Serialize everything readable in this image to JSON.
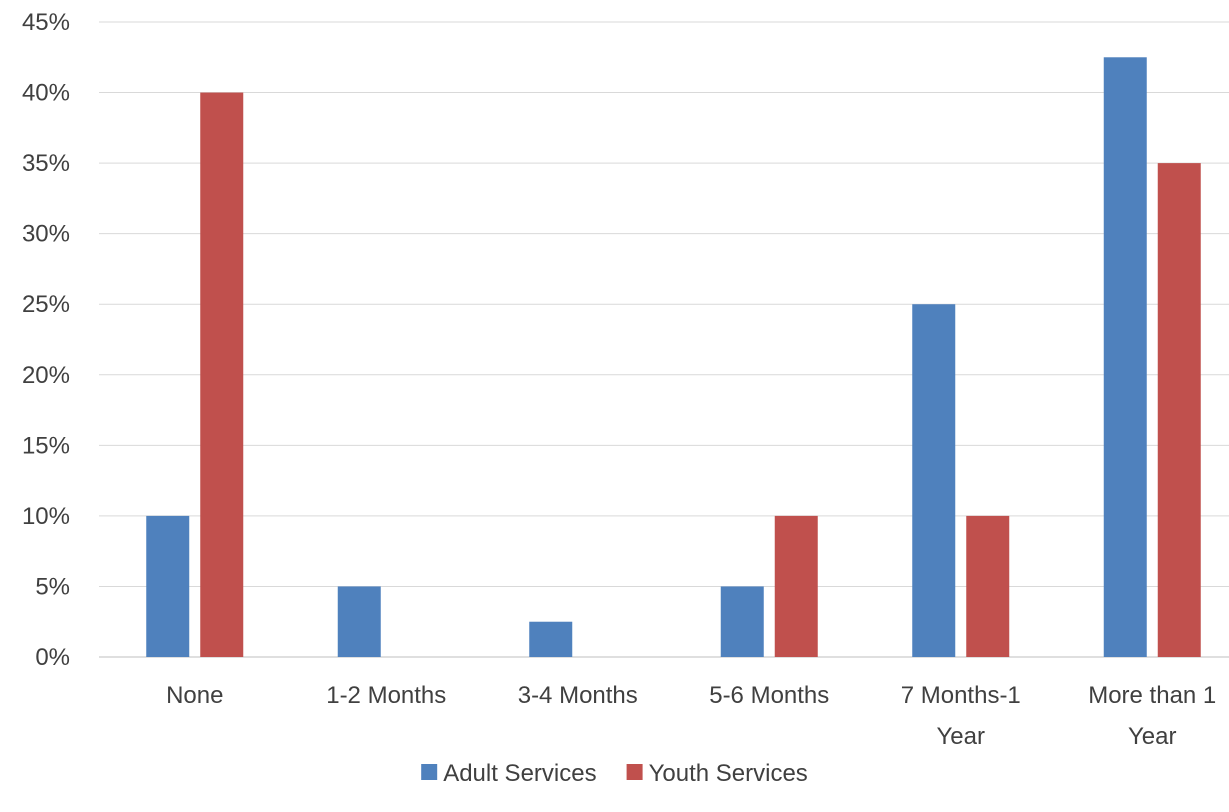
{
  "chart_data": {
    "type": "bar",
    "categories": [
      [
        "None"
      ],
      [
        "1-2 Months"
      ],
      [
        "3-4 Months"
      ],
      [
        "5-6 Months"
      ],
      [
        "7 Months-1",
        "Year"
      ],
      [
        "More than 1",
        "Year"
      ]
    ],
    "series": [
      {
        "name": "Adult Services",
        "color": "#4f81bd",
        "values": [
          10,
          5,
          2.5,
          5,
          25,
          42.5
        ]
      },
      {
        "name": "Youth Services",
        "color": "#c0504d",
        "values": [
          40,
          0,
          0,
          10,
          10,
          35
        ]
      }
    ],
    "y_ticks": [
      "0%",
      "5%",
      "10%",
      "15%",
      "20%",
      "25%",
      "30%",
      "35%",
      "40%",
      "45%"
    ],
    "ylim": [
      0,
      45
    ],
    "grid": true,
    "legend_position": "bottom",
    "title": "",
    "xlabel": "",
    "ylabel": ""
  }
}
